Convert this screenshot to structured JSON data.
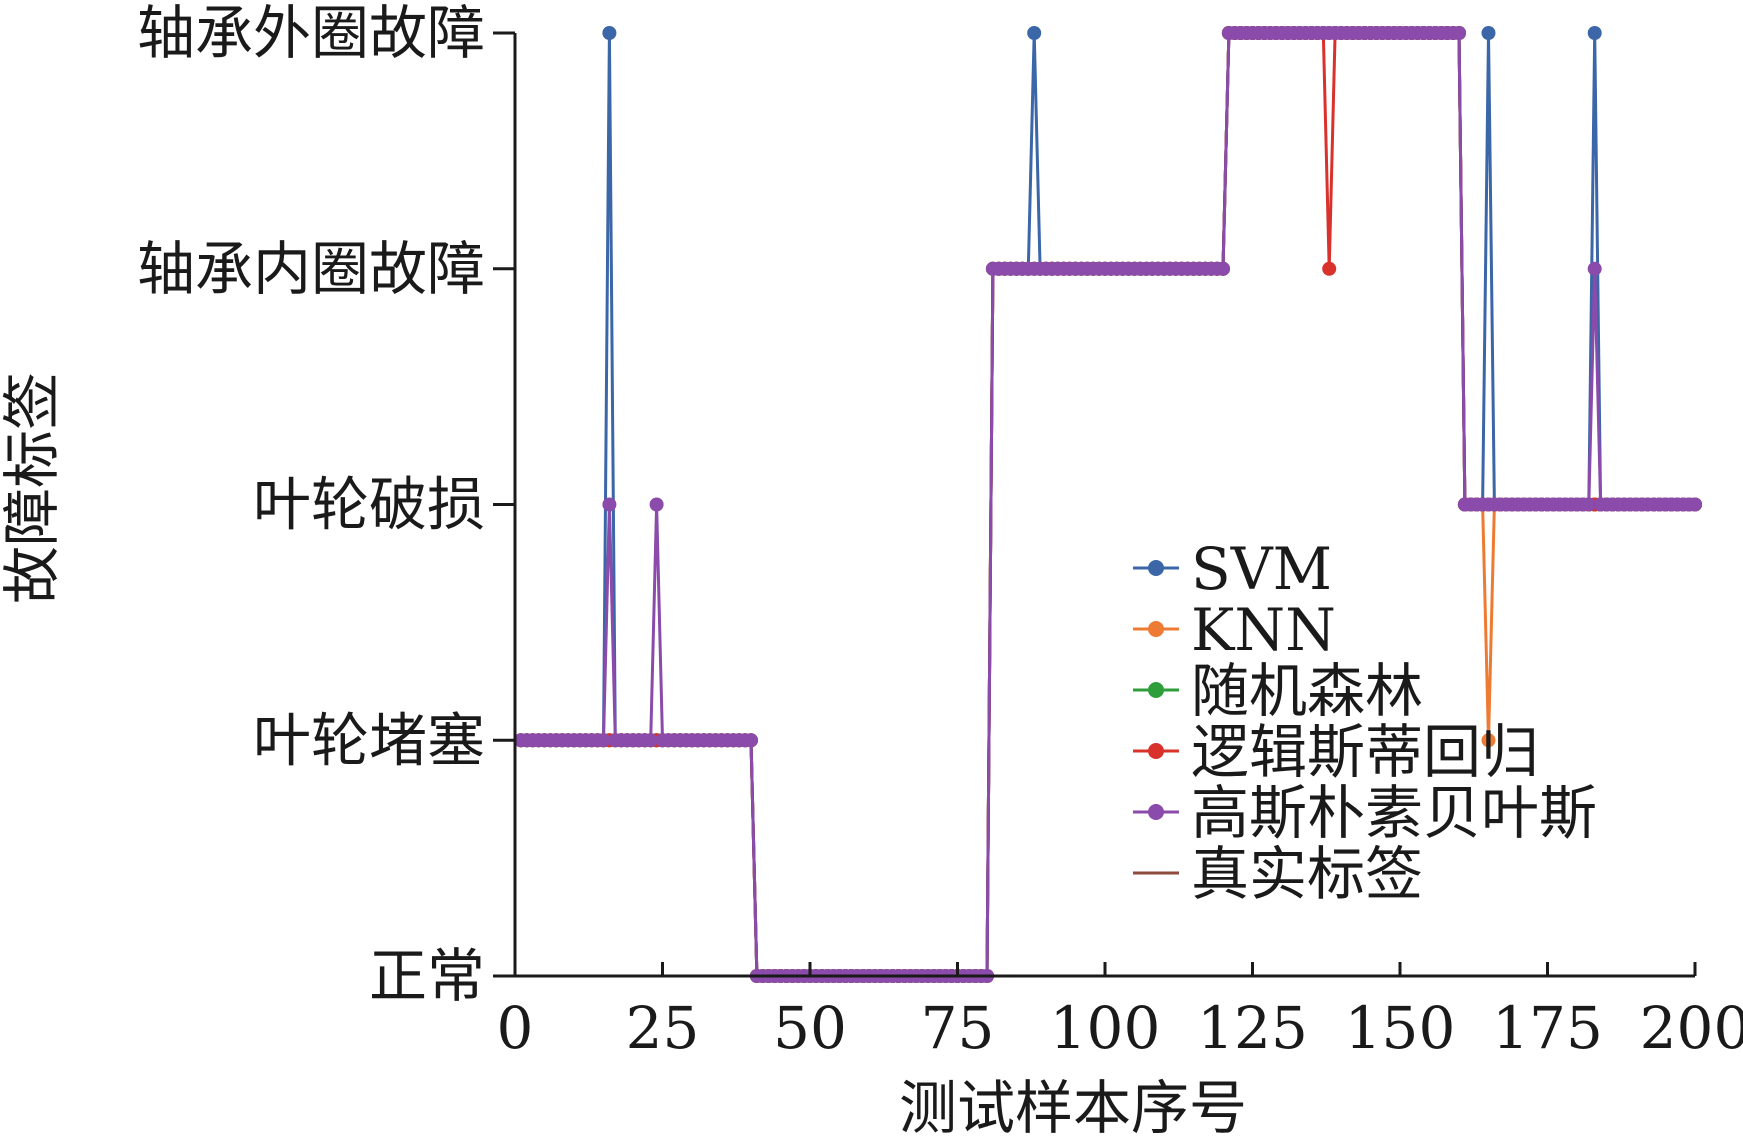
{
  "chart_data": {
    "type": "line",
    "xlabel": "测试样本序号",
    "ylabel": "故障标签",
    "xlim": [
      0,
      200
    ],
    "xticks": [
      0,
      25,
      50,
      75,
      100,
      125,
      150,
      175,
      200
    ],
    "ylim": [
      0,
      4
    ],
    "yticks": [
      0,
      1,
      2,
      3,
      4
    ],
    "ytick_labels": [
      "正常",
      "叶轮堵塞",
      "叶轮破损",
      "轴承内圈故障",
      "轴承外圈故障"
    ],
    "legend_position": "center-right",
    "grid": false,
    "true_label_segments": [
      {
        "x_start": 1,
        "x_end": 40,
        "label": 1
      },
      {
        "x_start": 41,
        "x_end": 80,
        "label": 0
      },
      {
        "x_start": 81,
        "x_end": 120,
        "label": 3
      },
      {
        "x_start": 121,
        "x_end": 160,
        "label": 4
      },
      {
        "x_start": 161,
        "x_end": 200,
        "label": 2
      }
    ],
    "series": [
      {
        "name": "SVM",
        "color": "#3b66a8",
        "marker": "dot",
        "deviations": [
          {
            "x": 16,
            "label": 4
          },
          {
            "x": 88,
            "label": 4
          },
          {
            "x": 165,
            "label": 4
          },
          {
            "x": 183,
            "label": 4
          }
        ]
      },
      {
        "name": "KNN",
        "color": "#ee7b33",
        "marker": "dot",
        "deviations": [
          {
            "x": 165,
            "label": 1
          }
        ]
      },
      {
        "name": "随机森林",
        "color": "#2e9e3b",
        "marker": "dot",
        "deviations": []
      },
      {
        "name": "逻辑斯蒂回归",
        "color": "#d9312b",
        "marker": "dot",
        "deviations": [
          {
            "x": 138,
            "label": 3
          }
        ]
      },
      {
        "name": "高斯朴素贝叶斯",
        "color": "#8a4bab",
        "marker": "dot",
        "deviations": [
          {
            "x": 16,
            "label": 2
          },
          {
            "x": 24,
            "label": 2
          },
          {
            "x": 183,
            "label": 3
          }
        ]
      },
      {
        "name": "真实标签",
        "color": "#8e4a3a",
        "marker": "none",
        "deviations": []
      }
    ]
  }
}
